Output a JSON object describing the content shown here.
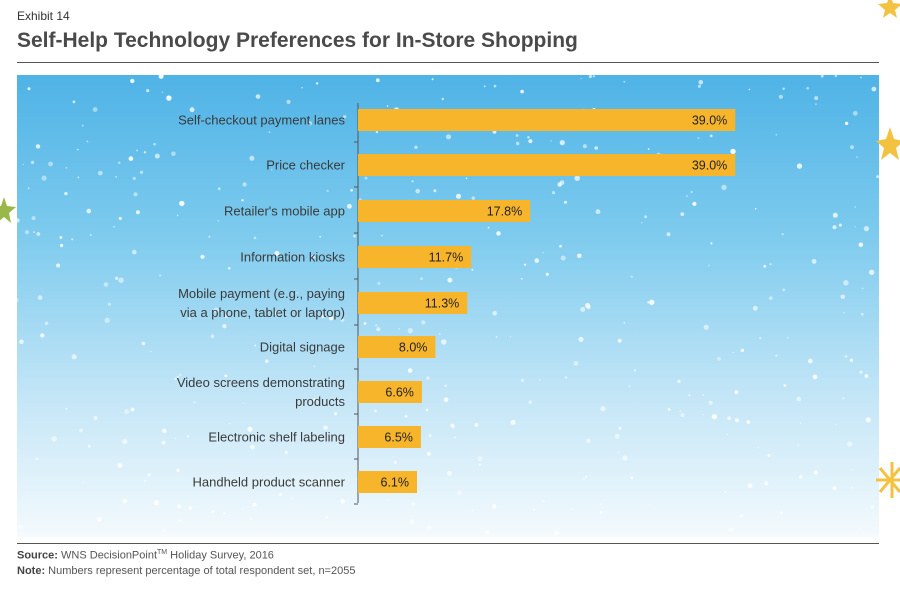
{
  "header": {
    "exhibit": "Exhibit 14",
    "title": "Self-Help Technology Preferences for In-Store Shopping"
  },
  "footer": {
    "source_label": "Source:",
    "source_text": "WNS DecisionPoint",
    "source_tm": "TM",
    "source_rest": " Holiday Survey, 2016",
    "note_label": "Note:",
    "note_text": "Numbers represent percentage of total respondent set, n=2055"
  },
  "colors": {
    "bar": "#f7b52c",
    "axis": "#555555",
    "label": "#3a3a3a"
  },
  "chart_data": {
    "type": "bar",
    "orientation": "horizontal",
    "title": "Self-Help Technology Preferences for In-Store Shopping",
    "categories": [
      [
        "Self-checkout payment lanes"
      ],
      [
        "Price checker"
      ],
      [
        "Retailer's mobile app"
      ],
      [
        "Information kiosks"
      ],
      [
        "Mobile payment (e.g., paying",
        "via a phone, tablet or laptop)"
      ],
      [
        "Digital signage"
      ],
      [
        "Video screens demonstrating",
        "products"
      ],
      [
        "Electronic shelf labeling"
      ],
      [
        "Handheld product scanner"
      ]
    ],
    "values": [
      39.0,
      39.0,
      17.8,
      11.7,
      11.3,
      8.0,
      6.6,
      6.5,
      6.1
    ],
    "value_labels": [
      "39.0%",
      "39.0%",
      "17.8%",
      "11.7%",
      "11.3%",
      "8.0%",
      "6.6%",
      "6.5%",
      "6.1%"
    ],
    "xlim": [
      0,
      40
    ],
    "unit": "%"
  }
}
